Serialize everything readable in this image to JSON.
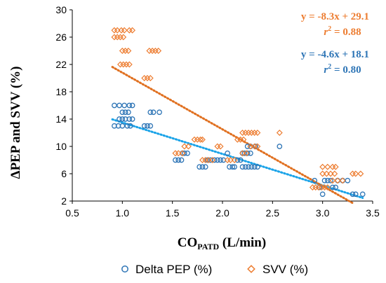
{
  "chart_data": {
    "type": "scatter",
    "xlabel_main": "CO",
    "xlabel_sub": "PATD",
    "xlabel_unit": " (L/min)",
    "ylabel": "ΔPEP and SVV (%)",
    "xlim": [
      0.5,
      3.5
    ],
    "ylim": [
      2,
      30
    ],
    "xticks": [
      "0.5",
      "1.0",
      "1.5",
      "2.0",
      "2.5",
      "3.0",
      "3.5"
    ],
    "yticks": [
      "2",
      "6",
      "10",
      "14",
      "18",
      "22",
      "26",
      "30"
    ],
    "grid": false,
    "legend_position": "bottom",
    "series": [
      {
        "name": "Delta PEP (%)",
        "legend_label": "Delta PEP (%)",
        "marker": "circle",
        "color": "#2E75B6",
        "trend_color": "#1AA3E8",
        "equation": "y = -4.6x + 18.1",
        "r2_label": "r",
        "r2_value": " = 0.80",
        "trend": {
          "slope": -4.6,
          "intercept": 18.1,
          "x_range": [
            0.9,
            3.4
          ]
        },
        "points": [
          [
            0.92,
            16
          ],
          [
            0.97,
            16
          ],
          [
            1.02,
            16
          ],
          [
            1.07,
            16
          ],
          [
            1.1,
            16
          ],
          [
            1.0,
            15
          ],
          [
            1.03,
            15
          ],
          [
            1.06,
            15
          ],
          [
            0.97,
            14
          ],
          [
            1.0,
            14
          ],
          [
            1.03,
            14
          ],
          [
            1.07,
            14
          ],
          [
            1.1,
            14
          ],
          [
            0.92,
            13
          ],
          [
            0.96,
            13
          ],
          [
            1.0,
            13
          ],
          [
            1.05,
            13
          ],
          [
            1.08,
            13
          ],
          [
            1.22,
            13
          ],
          [
            1.25,
            13
          ],
          [
            1.28,
            13
          ],
          [
            1.28,
            15
          ],
          [
            1.31,
            15
          ],
          [
            1.37,
            15
          ],
          [
            1.53,
            8
          ],
          [
            1.56,
            8
          ],
          [
            1.59,
            8
          ],
          [
            1.6,
            9
          ],
          [
            1.62,
            9
          ],
          [
            1.65,
            9
          ],
          [
            1.77,
            7
          ],
          [
            1.8,
            7
          ],
          [
            1.83,
            7
          ],
          [
            1.85,
            8
          ],
          [
            1.88,
            8
          ],
          [
            1.92,
            8
          ],
          [
            1.95,
            8
          ],
          [
            1.98,
            8
          ],
          [
            2.01,
            8
          ],
          [
            2.05,
            9
          ],
          [
            2.07,
            7
          ],
          [
            2.1,
            7
          ],
          [
            2.12,
            7
          ],
          [
            2.15,
            8
          ],
          [
            2.18,
            8
          ],
          [
            2.2,
            9
          ],
          [
            2.22,
            9
          ],
          [
            2.25,
            9
          ],
          [
            2.28,
            9
          ],
          [
            2.2,
            7
          ],
          [
            2.23,
            7
          ],
          [
            2.26,
            7
          ],
          [
            2.29,
            7
          ],
          [
            2.32,
            7
          ],
          [
            2.35,
            7
          ],
          [
            2.25,
            10
          ],
          [
            2.28,
            10
          ],
          [
            2.33,
            10
          ],
          [
            2.57,
            10
          ],
          [
            2.92,
            5
          ],
          [
            2.97,
            4
          ],
          [
            3.0,
            3
          ],
          [
            3.02,
            5
          ],
          [
            3.05,
            5
          ],
          [
            3.08,
            5
          ],
          [
            3.1,
            4
          ],
          [
            3.13,
            4
          ],
          [
            3.15,
            5
          ],
          [
            3.2,
            5
          ],
          [
            3.25,
            5
          ],
          [
            3.3,
            3
          ],
          [
            3.33,
            3
          ],
          [
            3.4,
            3
          ]
        ]
      },
      {
        "name": "SVV (%)",
        "legend_label": "SVV (%)",
        "marker": "diamond",
        "color": "#ED7D31",
        "trend_color": "#E07020",
        "equation": "y = -8.3x + 29.1",
        "r2_label": "r",
        "r2_value": " = 0.88",
        "trend": {
          "slope": -8.3,
          "intercept": 29.1,
          "x_range": [
            0.9,
            3.3
          ]
        },
        "points": [
          [
            0.92,
            27
          ],
          [
            0.95,
            27
          ],
          [
            0.99,
            27
          ],
          [
            1.02,
            27
          ],
          [
            1.07,
            27
          ],
          [
            1.1,
            27
          ],
          [
            0.92,
            26
          ],
          [
            0.95,
            26
          ],
          [
            0.98,
            26
          ],
          [
            1.01,
            26
          ],
          [
            1.0,
            24
          ],
          [
            1.03,
            24
          ],
          [
            1.06,
            24
          ],
          [
            0.98,
            22
          ],
          [
            1.01,
            22
          ],
          [
            1.04,
            22
          ],
          [
            1.07,
            22
          ],
          [
            1.22,
            20
          ],
          [
            1.25,
            20
          ],
          [
            1.28,
            20
          ],
          [
            1.27,
            24
          ],
          [
            1.3,
            24
          ],
          [
            1.33,
            24
          ],
          [
            1.36,
            24
          ],
          [
            1.53,
            9
          ],
          [
            1.56,
            9
          ],
          [
            1.6,
            9
          ],
          [
            1.62,
            10
          ],
          [
            1.66,
            10
          ],
          [
            1.72,
            11
          ],
          [
            1.75,
            11
          ],
          [
            1.78,
            11
          ],
          [
            1.8,
            11
          ],
          [
            1.8,
            8
          ],
          [
            1.83,
            8
          ],
          [
            1.86,
            8
          ],
          [
            1.9,
            8
          ],
          [
            1.95,
            10
          ],
          [
            1.98,
            10
          ],
          [
            2.05,
            8
          ],
          [
            2.08,
            8
          ],
          [
            2.12,
            8
          ],
          [
            2.15,
            11
          ],
          [
            2.18,
            11
          ],
          [
            2.21,
            11
          ],
          [
            2.2,
            12
          ],
          [
            2.23,
            12
          ],
          [
            2.26,
            12
          ],
          [
            2.29,
            12
          ],
          [
            2.32,
            12
          ],
          [
            2.35,
            12
          ],
          [
            2.2,
            9
          ],
          [
            2.24,
            9
          ],
          [
            2.28,
            10
          ],
          [
            2.32,
            10
          ],
          [
            2.35,
            10
          ],
          [
            2.57,
            12
          ],
          [
            2.9,
            4
          ],
          [
            2.93,
            4
          ],
          [
            2.96,
            4
          ],
          [
            2.99,
            4
          ],
          [
            3.02,
            4
          ],
          [
            3.05,
            4
          ],
          [
            3.0,
            7
          ],
          [
            3.05,
            7
          ],
          [
            3.1,
            7
          ],
          [
            3.13,
            7
          ],
          [
            3.0,
            6
          ],
          [
            3.04,
            6
          ],
          [
            3.08,
            6
          ],
          [
            3.12,
            6
          ],
          [
            3.1,
            5
          ],
          [
            3.15,
            5
          ],
          [
            3.2,
            5
          ],
          [
            3.3,
            6
          ],
          [
            3.33,
            6
          ],
          [
            3.38,
            6
          ]
        ]
      }
    ]
  }
}
